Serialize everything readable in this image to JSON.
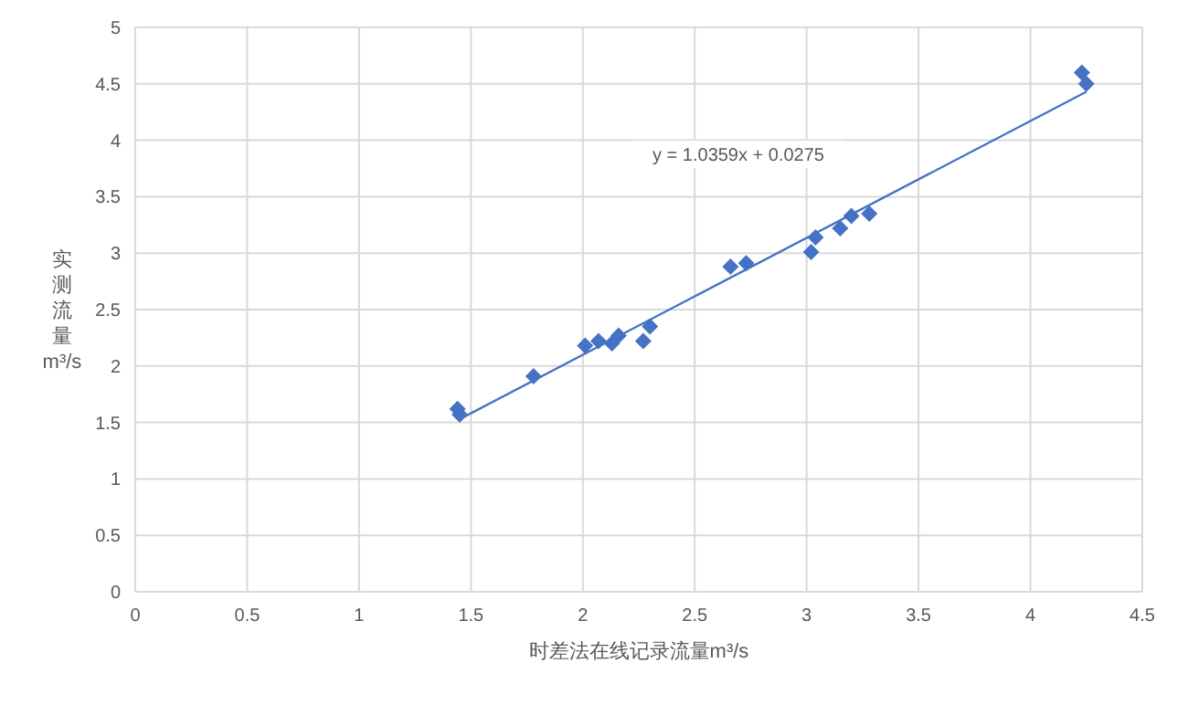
{
  "chart_data": {
    "type": "scatter",
    "xlabel": "时差法在线记录流量m³/s",
    "ylabel": "实测流量m³/s",
    "xlim": [
      0,
      4.5
    ],
    "xticks": [
      0,
      0.5,
      1,
      1.5,
      2,
      2.5,
      3,
      3.5,
      4,
      4.5
    ],
    "ylim": [
      0,
      5
    ],
    "yticks": [
      0,
      0.5,
      1,
      1.5,
      2,
      2.5,
      3,
      3.5,
      4,
      4.5,
      5
    ],
    "grid": true,
    "series": [
      {
        "marker": "diamond",
        "color": "#4472c4",
        "x": [
          1.44,
          1.45,
          1.78,
          2.01,
          2.07,
          2.13,
          2.16,
          2.27,
          2.3,
          2.66,
          2.73,
          3.02,
          3.04,
          3.15,
          3.2,
          3.28,
          4.23,
          4.25
        ],
        "values": [
          1.62,
          1.57,
          1.91,
          2.18,
          2.22,
          2.2,
          2.27,
          2.22,
          2.35,
          2.88,
          2.91,
          3.01,
          3.14,
          3.22,
          3.33,
          3.35,
          4.6,
          4.5
        ]
      },
      {
        "type": "line",
        "marker": "none",
        "color": "#4472c4",
        "x": [
          1.45,
          4.25
        ],
        "values": [
          1.53,
          4.43
        ]
      }
    ],
    "annotations": [
      "y = 1.0359x + 0.0275"
    ]
  }
}
